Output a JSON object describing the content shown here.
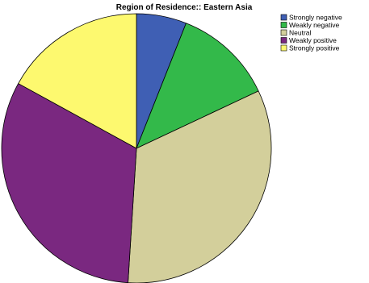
{
  "chart_data": {
    "type": "pie",
    "title": "Region of Residence:: Eastern Asia",
    "categories": [
      "Strongly negative",
      "Weakly negative",
      "Neutral",
      "Weakly positive",
      "Strongly positive"
    ],
    "values": [
      6,
      12,
      33,
      32,
      17
    ],
    "colors": [
      "#3f5fb4",
      "#33b94a",
      "#d3cf9b",
      "#7a2880",
      "#fdf96f"
    ],
    "start_angle_deg": 0,
    "direction": "clockwise",
    "legend_position": "top-right"
  }
}
